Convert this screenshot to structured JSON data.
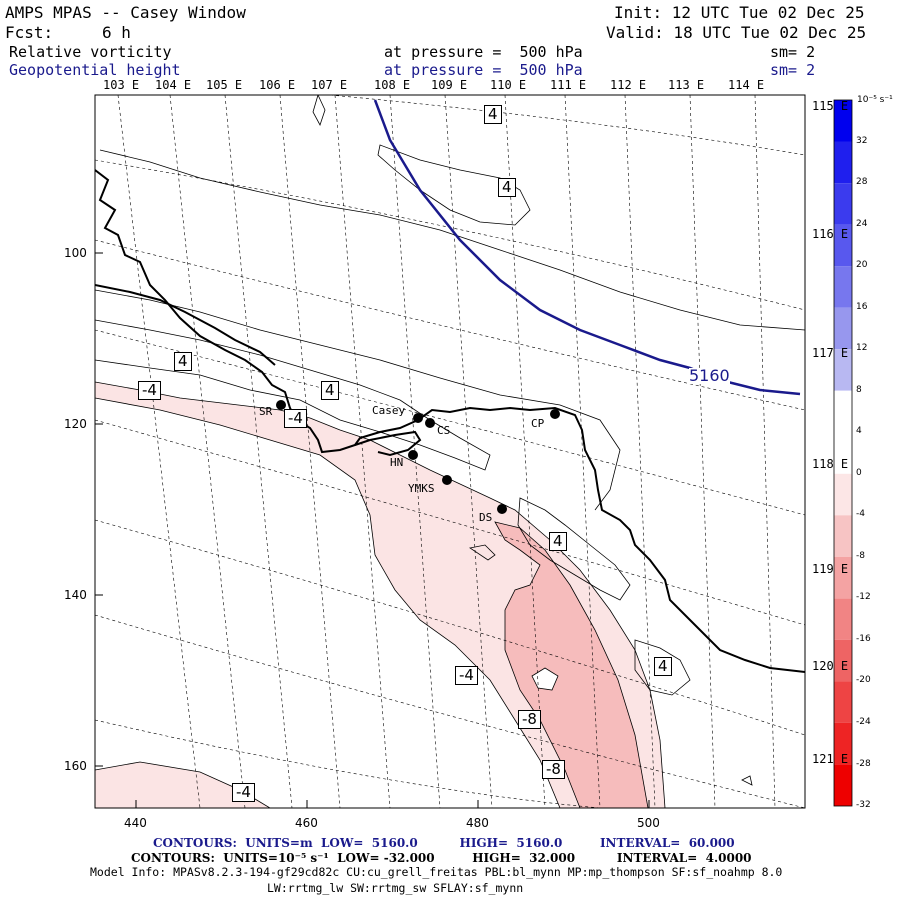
{
  "header": {
    "title": "AMPS MPAS -- Casey Window",
    "forecast_label": "Fcst:",
    "forecast_value": "6 h",
    "init": "Init: 12 UTC Tue 02 Dec 25",
    "valid": "Valid: 18 UTC Tue 02 Dec 25",
    "field1_name": "Relative vorticity",
    "field1_level": "at pressure =  500 hPa",
    "field1_sm": "sm= 2",
    "field2_name": "Geopotential height",
    "field2_level": "at pressure =  500 hPa",
    "field2_sm": "sm= 2"
  },
  "top_lon_labels": [
    "103 E",
    "104 E",
    "105 E",
    "106 E",
    "107 E",
    "108 E",
    "109 E",
    "110 E",
    "111 E",
    "112 E",
    "113 E",
    "114 E"
  ],
  "right_lon_labels": [
    "115 E",
    "116 E",
    "117 E",
    "118 E",
    "119 E",
    "120 E",
    "121 E"
  ],
  "y_ticks": [
    "100",
    "120",
    "140",
    "160"
  ],
  "x_ticks": [
    "440",
    "460",
    "480",
    "500"
  ],
  "stations": [
    {
      "name": "SR"
    },
    {
      "name": "Casey"
    },
    {
      "name": "CS"
    },
    {
      "name": "CP"
    },
    {
      "name": "HN"
    },
    {
      "name": "YMKS"
    },
    {
      "name": "DS"
    }
  ],
  "contour_labels": {
    "height": "5160",
    "vort": [
      "4",
      "4",
      "4",
      "4",
      "4",
      "4",
      "-4",
      "-4",
      "-4",
      "-4",
      "-8",
      "-8"
    ]
  },
  "colorbar": {
    "unit": "10⁻⁵ s⁻¹",
    "labels": [
      "32",
      "28",
      "24",
      "20",
      "16",
      "12",
      "8",
      "4",
      "0",
      "-4",
      "-8",
      "-12",
      "-16",
      "-20",
      "-24",
      "-28",
      "-32"
    ],
    "colors": [
      "#0000ee",
      "#1f1fee",
      "#3b3bee",
      "#5858ee",
      "#7777ee",
      "#9797ee",
      "#b8b8f2",
      "#ffffff",
      "#ffffff",
      "#fce6e6",
      "#f7c4c4",
      "#f4a3a3",
      "#f18484",
      "#ee6464",
      "#ee4444",
      "#ee2424",
      "#ee0000"
    ]
  },
  "footer": {
    "line1": "CONTOURS:  UNITS=m  LOW=  5160.0          HIGH=  5160.0         INTERVAL=  60.000",
    "line2": "CONTOURS:  UNITS=10⁻⁵ s⁻¹  LOW= -32.000         HIGH=  32.000          INTERVAL=  4.0000",
    "line3": "Model Info: MPASv8.2.3-194-gf29cd82c CU:cu_grell_freitas PBL:bl_mynn MP:mp_thompson SF:sf_noahmp 8.0",
    "line4": "LW:rrtmg_lw SW:rrtmg_sw SFLAY:sf_mynn"
  }
}
